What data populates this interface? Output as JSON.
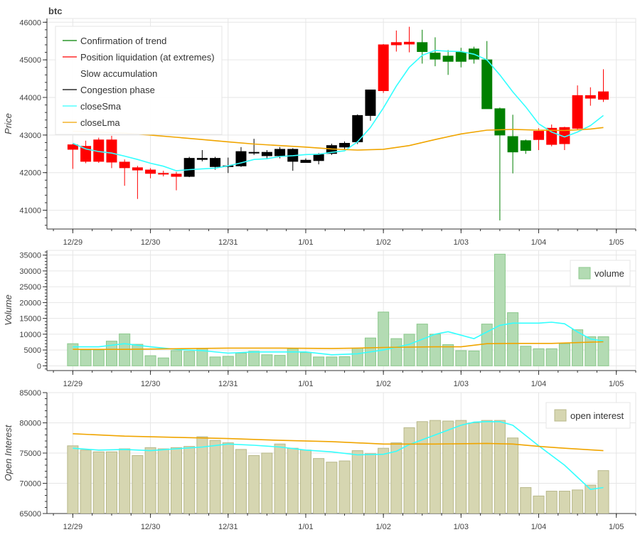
{
  "title": "btc",
  "colors": {
    "up": "#008000",
    "down": "#ff0000",
    "slow": "#ffffff",
    "congestion": "#000000",
    "closeSma": "#33ffff",
    "closeLma": "#f0a500",
    "volume_fill": "#b3dbb3",
    "volume_stroke": "#8cc88c",
    "oi_fill": "#d6d6b1",
    "oi_stroke": "#b8b88a",
    "grid": "#e6e6e6",
    "axis": "#333333"
  },
  "chart_data": [
    {
      "type": "candlestick",
      "panel": "price",
      "title": "btc",
      "ylabel": "Price",
      "ylim": [
        40500,
        46100
      ],
      "yticks": [
        41000,
        42000,
        43000,
        44000,
        45000,
        46000
      ],
      "x_ticks": [
        {
          "t": 0,
          "label": "12/29"
        },
        {
          "t": 12,
          "label": "12/30"
        },
        {
          "t": 24,
          "label": "12/31"
        },
        {
          "t": 36,
          "label": "1/01"
        },
        {
          "t": 48,
          "label": "1/02"
        },
        {
          "t": 60,
          "label": "1/03"
        },
        {
          "t": 72,
          "label": "1/04"
        },
        {
          "t": 84,
          "label": "1/05"
        }
      ],
      "x_range": [
        -4,
        87
      ],
      "legend": {
        "position": "top-left",
        "entries": [
          {
            "label": "Confirmation of trend",
            "color": "#008000"
          },
          {
            "label": "Position liquidation (at extremes)",
            "color": "#ff0000"
          },
          {
            "label": "Slow accumulation",
            "color": "#ffffff"
          },
          {
            "label": "Congestion phase",
            "color": "#000000"
          },
          {
            "label": "closeSma",
            "color": "#33ffff"
          },
          {
            "label": "closeLma",
            "color": "#f0a500"
          }
        ]
      },
      "candles": [
        {
          "t": 0,
          "o": 42620,
          "h": 42770,
          "l": 42100,
          "c": 42740,
          "cls": "down"
        },
        {
          "t": 2,
          "o": 42700,
          "h": 42850,
          "l": 42250,
          "c": 42300,
          "cls": "down"
        },
        {
          "t": 4,
          "o": 42300,
          "h": 42930,
          "l": 42260,
          "c": 42870,
          "cls": "down"
        },
        {
          "t": 6,
          "o": 42870,
          "h": 42980,
          "l": 42120,
          "c": 42280,
          "cls": "down"
        },
        {
          "t": 8,
          "o": 42280,
          "h": 42350,
          "l": 41650,
          "c": 42130,
          "cls": "down"
        },
        {
          "t": 10,
          "o": 42130,
          "h": 42180,
          "l": 41300,
          "c": 42070,
          "cls": "down"
        },
        {
          "t": 12,
          "o": 42070,
          "h": 42120,
          "l": 41850,
          "c": 41980,
          "cls": "down"
        },
        {
          "t": 14,
          "o": 41980,
          "h": 42050,
          "l": 41900,
          "c": 41960,
          "cls": "down"
        },
        {
          "t": 16,
          "o": 41960,
          "h": 42020,
          "l": 41530,
          "c": 41900,
          "cls": "down"
        },
        {
          "t": 18,
          "o": 41900,
          "h": 42420,
          "l": 41880,
          "c": 42380,
          "cls": "congestion"
        },
        {
          "t": 20,
          "o": 42350,
          "h": 42600,
          "l": 42300,
          "c": 42380,
          "cls": "congestion"
        },
        {
          "t": 22,
          "o": 42380,
          "h": 42420,
          "l": 42080,
          "c": 42160,
          "cls": "congestion"
        },
        {
          "t": 24,
          "o": 42160,
          "h": 42400,
          "l": 41990,
          "c": 42180,
          "cls": "congestion"
        },
        {
          "t": 26,
          "o": 42180,
          "h": 42680,
          "l": 42150,
          "c": 42560,
          "cls": "congestion"
        },
        {
          "t": 28,
          "o": 42540,
          "h": 42900,
          "l": 42470,
          "c": 42520,
          "cls": "congestion"
        },
        {
          "t": 30,
          "o": 42450,
          "h": 42600,
          "l": 42380,
          "c": 42540,
          "cls": "congestion"
        },
        {
          "t": 32,
          "o": 42450,
          "h": 42680,
          "l": 42380,
          "c": 42620,
          "cls": "congestion"
        },
        {
          "t": 34,
          "o": 42300,
          "h": 42650,
          "l": 42050,
          "c": 42620,
          "cls": "congestion"
        },
        {
          "t": 36,
          "o": 42330,
          "h": 42380,
          "l": 42280,
          "c": 42270,
          "cls": "congestion"
        },
        {
          "t": 38,
          "o": 42320,
          "h": 42520,
          "l": 42220,
          "c": 42480,
          "cls": "congestion"
        },
        {
          "t": 40,
          "o": 42510,
          "h": 42770,
          "l": 42470,
          "c": 42720,
          "cls": "congestion"
        },
        {
          "t": 42,
          "o": 42680,
          "h": 42830,
          "l": 42600,
          "c": 42780,
          "cls": "congestion"
        },
        {
          "t": 44,
          "o": 42820,
          "h": 43550,
          "l": 42760,
          "c": 43520,
          "cls": "congestion"
        },
        {
          "t": 46,
          "o": 43520,
          "h": 44200,
          "l": 43380,
          "c": 44200,
          "cls": "congestion"
        },
        {
          "t": 48,
          "o": 44180,
          "h": 45420,
          "l": 44120,
          "c": 45400,
          "cls": "down"
        },
        {
          "t": 50,
          "o": 45400,
          "h": 45780,
          "l": 45220,
          "c": 45460,
          "cls": "down"
        },
        {
          "t": 52,
          "o": 45420,
          "h": 45880,
          "l": 45200,
          "c": 45470,
          "cls": "down"
        },
        {
          "t": 54,
          "o": 45460,
          "h": 45800,
          "l": 44900,
          "c": 45220,
          "cls": "up"
        },
        {
          "t": 56,
          "o": 45180,
          "h": 45600,
          "l": 44830,
          "c": 45020,
          "cls": "up"
        },
        {
          "t": 58,
          "o": 45100,
          "h": 45260,
          "l": 44600,
          "c": 44960,
          "cls": "up"
        },
        {
          "t": 60,
          "o": 44960,
          "h": 45320,
          "l": 44800,
          "c": 45200,
          "cls": "up"
        },
        {
          "t": 62,
          "o": 45290,
          "h": 45350,
          "l": 44900,
          "c": 45020,
          "cls": "up"
        },
        {
          "t": 64,
          "o": 45000,
          "h": 45500,
          "l": 43700,
          "c": 43700,
          "cls": "up"
        },
        {
          "t": 66,
          "o": 43700,
          "h": 43730,
          "l": 40730,
          "c": 43000,
          "cls": "up"
        },
        {
          "t": 68,
          "o": 42960,
          "h": 43540,
          "l": 41980,
          "c": 42550,
          "cls": "up"
        },
        {
          "t": 70,
          "o": 42850,
          "h": 42880,
          "l": 42500,
          "c": 42590,
          "cls": "up"
        },
        {
          "t": 72,
          "o": 42880,
          "h": 43180,
          "l": 42600,
          "c": 43100,
          "cls": "down"
        },
        {
          "t": 74,
          "o": 42750,
          "h": 43280,
          "l": 42700,
          "c": 43180,
          "cls": "down"
        },
        {
          "t": 76,
          "o": 42770,
          "h": 43220,
          "l": 42600,
          "c": 43200,
          "cls": "down"
        },
        {
          "t": 78,
          "o": 43180,
          "h": 44320,
          "l": 43150,
          "c": 44050,
          "cls": "down"
        },
        {
          "t": 80,
          "o": 43980,
          "h": 44270,
          "l": 43780,
          "c": 44050,
          "cls": "down"
        },
        {
          "t": 82,
          "o": 43950,
          "h": 44750,
          "l": 43880,
          "c": 44150,
          "cls": "down"
        }
      ],
      "series": [
        {
          "name": "closeSma",
          "x": [
            0,
            2,
            4,
            6,
            8,
            10,
            12,
            14,
            16,
            18,
            20,
            22,
            24,
            26,
            28,
            30,
            32,
            34,
            36,
            38,
            40,
            42,
            44,
            46,
            48,
            50,
            52,
            54,
            56,
            58,
            60,
            62,
            64,
            66,
            68,
            70,
            72,
            74,
            76,
            78,
            80,
            82
          ],
          "y": [
            42780,
            42630,
            42560,
            42520,
            42440,
            42350,
            42250,
            42170,
            42050,
            42080,
            42100,
            42120,
            42180,
            42260,
            42350,
            42370,
            42430,
            42450,
            42480,
            42490,
            42540,
            42580,
            42820,
            43200,
            43720,
            44300,
            44800,
            45120,
            45250,
            45230,
            45220,
            45150,
            45000,
            44600,
            44150,
            43750,
            43300,
            43080,
            42950,
            43080,
            43250,
            43520
          ]
        },
        {
          "name": "closeLma",
          "x": [
            0,
            4,
            8,
            12,
            16,
            20,
            24,
            28,
            32,
            36,
            40,
            44,
            48,
            52,
            56,
            60,
            64,
            68,
            72,
            76,
            80,
            82
          ],
          "y": [
            43100,
            43080,
            43050,
            43000,
            42940,
            42880,
            42820,
            42760,
            42720,
            42680,
            42630,
            42600,
            42620,
            42720,
            42880,
            43030,
            43130,
            43150,
            43130,
            43120,
            43160,
            43200
          ]
        }
      ]
    },
    {
      "type": "bar",
      "panel": "volume",
      "ylabel": "Volume",
      "ylim": [
        -1500,
        36500
      ],
      "yticks": [
        0,
        5000,
        10000,
        15000,
        20000,
        25000,
        30000,
        35000
      ],
      "legend": {
        "position": "top-right",
        "entries": [
          {
            "label": "volume"
          }
        ]
      },
      "x": [
        0,
        2,
        4,
        6,
        8,
        10,
        12,
        14,
        16,
        18,
        20,
        22,
        24,
        26,
        28,
        30,
        32,
        34,
        36,
        38,
        40,
        42,
        44,
        46,
        48,
        50,
        52,
        54,
        56,
        58,
        60,
        62,
        64,
        66,
        68,
        70,
        72,
        74,
        76,
        78,
        80,
        82
      ],
      "values": [
        7000,
        5000,
        5000,
        7800,
        10100,
        6800,
        3200,
        2500,
        4800,
        4600,
        5500,
        2800,
        3000,
        4000,
        4600,
        3500,
        3300,
        5400,
        4200,
        2800,
        2800,
        2900,
        5600,
        8800,
        17000,
        8600,
        10000,
        13200,
        10000,
        6700,
        4800,
        4700,
        13200,
        35300,
        16800,
        6200,
        5400,
        5400,
        7000,
        11400,
        9200,
        9200
      ],
      "series": [
        {
          "name": "closeSma",
          "x": [
            0,
            4,
            8,
            12,
            16,
            20,
            24,
            28,
            32,
            36,
            40,
            44,
            48,
            52,
            56,
            58,
            62,
            66,
            68,
            72,
            74,
            76,
            78,
            80,
            82
          ],
          "y": [
            6000,
            6000,
            7000,
            6000,
            5200,
            4800,
            4000,
            4400,
            4400,
            4400,
            3500,
            3800,
            5000,
            6800,
            10000,
            10800,
            8600,
            12800,
            13500,
            13500,
            13800,
            13300,
            10700,
            8500,
            7800
          ]
        },
        {
          "name": "closeLma",
          "x": [
            0,
            8,
            16,
            24,
            32,
            40,
            44,
            48,
            56,
            60,
            64,
            68,
            74,
            82
          ],
          "y": [
            5200,
            5200,
            5400,
            5600,
            5600,
            5500,
            5600,
            5800,
            6000,
            6000,
            7000,
            7100,
            7100,
            7600
          ]
        }
      ]
    },
    {
      "type": "bar",
      "panel": "open_interest",
      "ylabel": "Open Interest",
      "ylim": [
        65000,
        85000
      ],
      "yticks": [
        65000,
        70000,
        75000,
        80000,
        85000
      ],
      "legend": {
        "position": "top-right",
        "entries": [
          {
            "label": "open interest"
          }
        ]
      },
      "x": [
        0,
        2,
        4,
        6,
        8,
        10,
        12,
        14,
        16,
        18,
        20,
        22,
        24,
        26,
        28,
        30,
        32,
        34,
        36,
        38,
        40,
        42,
        44,
        46,
        48,
        50,
        52,
        54,
        56,
        58,
        60,
        62,
        64,
        66,
        68,
        70,
        72,
        74,
        76,
        78,
        80,
        82
      ],
      "values": [
        76200,
        75500,
        75200,
        75200,
        75700,
        74600,
        75900,
        75700,
        75900,
        76100,
        77700,
        77100,
        76700,
        75600,
        74600,
        75000,
        76500,
        75800,
        75500,
        74100,
        73500,
        73700,
        75400,
        74900,
        75800,
        76700,
        79200,
        80200,
        80400,
        80300,
        80400,
        80000,
        80400,
        80400,
        77500,
        69300,
        67900,
        68700,
        68700,
        68900,
        69700,
        72100
      ],
      "series": [
        {
          "name": "closeSma",
          "x": [
            0,
            4,
            8,
            12,
            16,
            20,
            24,
            28,
            32,
            36,
            40,
            44,
            48,
            50,
            52,
            56,
            60,
            62,
            64,
            66,
            68,
            72,
            76,
            80,
            82
          ],
          "y": [
            75800,
            75500,
            75600,
            75400,
            75700,
            76000,
            76500,
            76300,
            76000,
            75500,
            75200,
            74700,
            74800,
            75300,
            76400,
            78000,
            79600,
            80100,
            80200,
            80200,
            79600,
            76200,
            73000,
            69000,
            69300
          ]
        },
        {
          "name": "closeLma",
          "x": [
            0,
            8,
            16,
            24,
            32,
            40,
            48,
            56,
            64,
            68,
            72,
            76,
            82
          ],
          "y": [
            78200,
            77800,
            77600,
            77400,
            77100,
            76900,
            76500,
            76500,
            76600,
            76500,
            76100,
            75800,
            75400
          ]
        }
      ]
    }
  ]
}
